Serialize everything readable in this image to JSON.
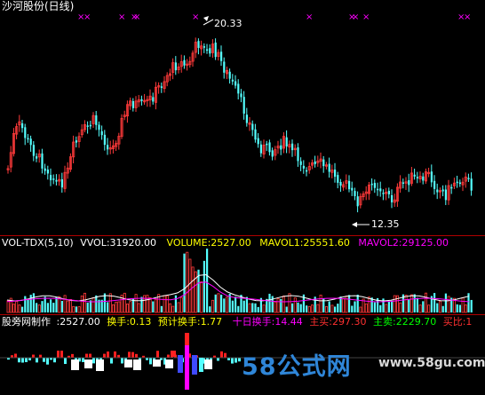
{
  "colors": {
    "up": "#ff3a3a",
    "down": "#54ffff",
    "white": "#ffffff",
    "yellow": "#ffff00",
    "magenta": "#ff00ff",
    "divider": "#b00000",
    "green": "#00ff00",
    "red": "#ff2020"
  },
  "header": {
    "title": "沙河股份(日线)"
  },
  "price_chart": {
    "high_label": "20.33",
    "low_label": "12.35",
    "marker": "×"
  },
  "volume_header": {
    "indicator": "VOL-TDX(5,10)",
    "vvol": "VVOL:31920.00",
    "volume": "VOLUME:2527.00",
    "mavol1": "MAVOL1:25551.60",
    "mavol2": "MAVOL2:29125.00"
  },
  "bottom_header": {
    "name": "股旁网制作",
    "value": ":2527.00",
    "turnover": "换手:0.13",
    "est_turnover": "预计换手:1.77",
    "ten_day": "十日换手:14.44",
    "main_buy": "主买:297.30",
    "main_sell": "主卖:2229.70",
    "ratio": "买比:1"
  },
  "watermark": {
    "logo": "58公式网",
    "url": "www.58gu.com"
  },
  "chart_data": {
    "type": "candlestick",
    "price_high": 20.33,
    "price_low": 12.35
  }
}
